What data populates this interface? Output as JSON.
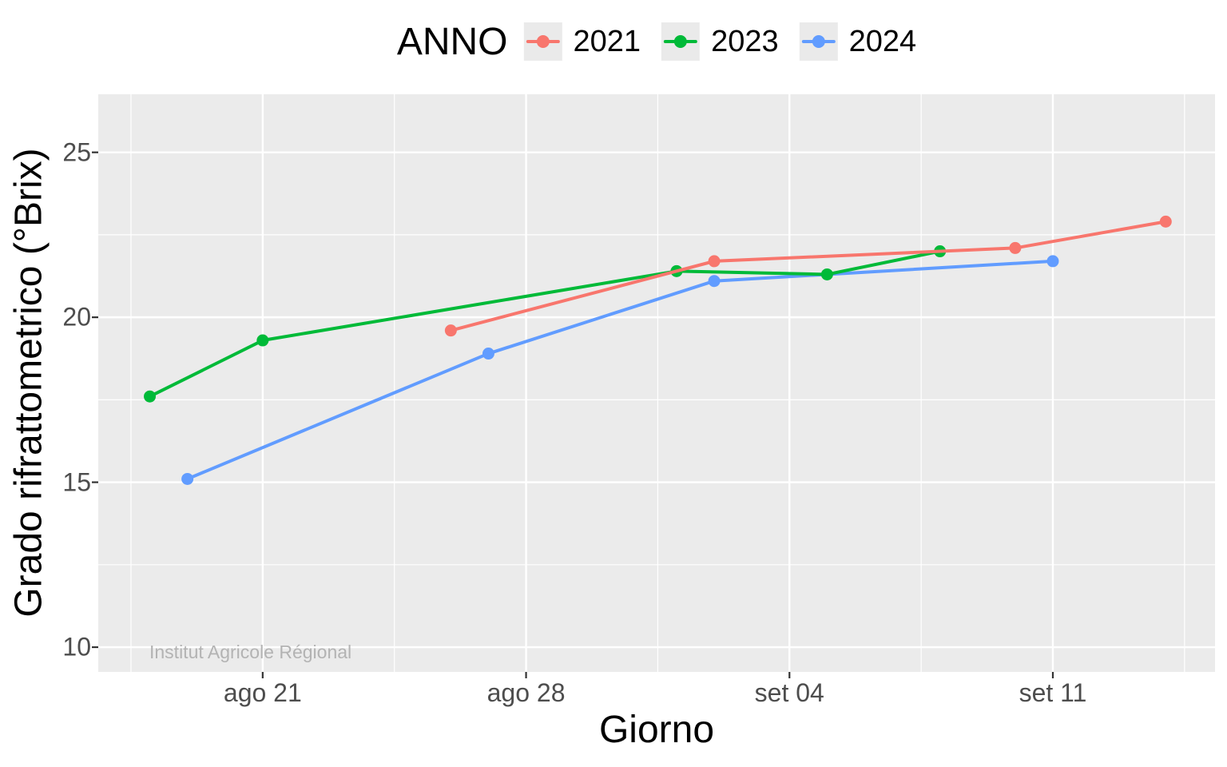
{
  "page": {
    "background": "#FFFFFF"
  },
  "legend": {
    "title": "ANNO",
    "position": "top",
    "items": [
      {
        "label": "2021",
        "color": "#F8766D"
      },
      {
        "label": "2023",
        "color": "#00BA38"
      },
      {
        "label": "2024",
        "color": "#619CFF"
      }
    ]
  },
  "watermark": {
    "text": "Institut Agricole Régional",
    "color": "#B3B3B3"
  },
  "chart_data": {
    "type": "line",
    "title": "",
    "xlabel": "Giorno",
    "ylabel": "Grado rifrattometrico (°Brix)",
    "grid": true,
    "legend_position": "top",
    "panel_background": "#EBEBEB",
    "gridline_color": "#FFFFFF",
    "axis_text_color": "#4D4D4D",
    "tick_mark_color": "#333333",
    "x_axis": {
      "unit": "date (giorno), day offset relative to ago 21",
      "major_ticks": [
        {
          "day": 0,
          "label": "ago 21"
        },
        {
          "day": 7,
          "label": "ago 28"
        },
        {
          "day": 14,
          "label": "set 04"
        },
        {
          "day": 21,
          "label": "set 11"
        }
      ],
      "minor_days": [
        -3.5,
        3.5,
        10.5,
        17.5,
        24.5
      ],
      "range_days": [
        -4.37,
        25.31
      ]
    },
    "y_axis": {
      "major_ticks": [
        25,
        20,
        15,
        10
      ],
      "minor": [
        22.5,
        17.5,
        12.5
      ],
      "range": [
        9.25,
        26.76
      ]
    },
    "series": [
      {
        "name": "2021",
        "color": "#F8766D",
        "points": [
          {
            "date": "ago 26",
            "day": 5,
            "value": 19.6
          },
          {
            "date": "set 02",
            "day": 12,
            "value": 21.7
          },
          {
            "date": "set 10",
            "day": 20,
            "value": 22.1
          },
          {
            "date": "set 14",
            "day": 24,
            "value": 22.9
          }
        ]
      },
      {
        "name": "2023",
        "color": "#00BA38",
        "points": [
          {
            "date": "ago 18",
            "day": -3,
            "value": 17.6
          },
          {
            "date": "ago 21",
            "day": 0,
            "value": 19.3
          },
          {
            "date": "set 01",
            "day": 11,
            "value": 21.4
          },
          {
            "date": "set 05",
            "day": 15,
            "value": 21.3
          },
          {
            "date": "set 08",
            "day": 18,
            "value": 22.0
          }
        ]
      },
      {
        "name": "2024",
        "color": "#619CFF",
        "points": [
          {
            "date": "ago 19",
            "day": -2,
            "value": 15.1
          },
          {
            "date": "ago 27",
            "day": 6,
            "value": 18.9
          },
          {
            "date": "set 02",
            "day": 12,
            "value": 21.1
          },
          {
            "date": "set 11",
            "day": 21,
            "value": 21.7
          }
        ]
      }
    ]
  }
}
